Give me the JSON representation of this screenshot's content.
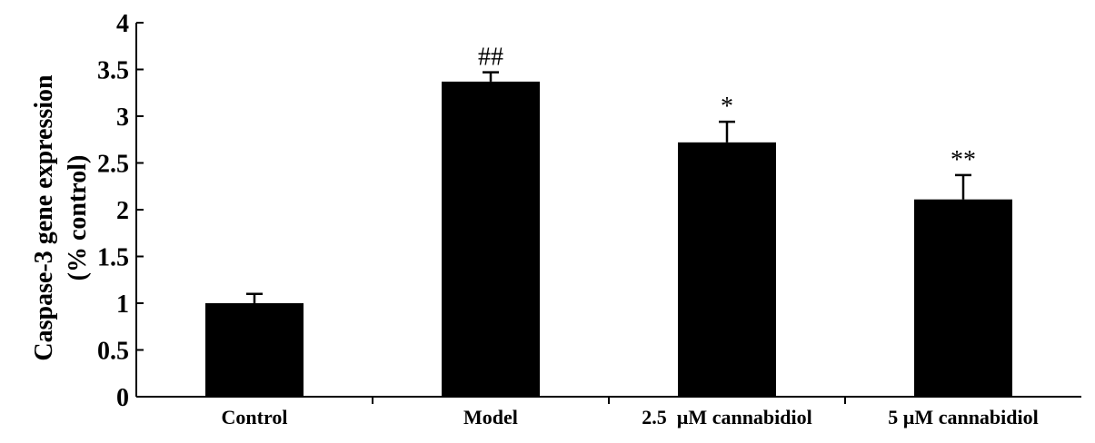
{
  "chart_data": {
    "type": "bar",
    "title": "",
    "xlabel": "",
    "ylabel_lines": [
      "Caspase-3 gene expression",
      "(% control)"
    ],
    "categories": [
      "Control",
      "Model",
      "2.5  µM cannabidiol",
      "5 µM cannabidiol"
    ],
    "values": [
      1.0,
      3.37,
      2.72,
      2.11
    ],
    "error": [
      0.1,
      0.1,
      0.22,
      0.26
    ],
    "annotations": [
      "",
      "##",
      "*",
      "**"
    ],
    "ylim": [
      0,
      4
    ],
    "yticks": [
      "0",
      "0.5",
      "1",
      "1.5",
      "2",
      "2.5",
      "3",
      "3.5",
      "4"
    ],
    "bar_color": "#000000",
    "grid": false,
    "legend": "none"
  }
}
